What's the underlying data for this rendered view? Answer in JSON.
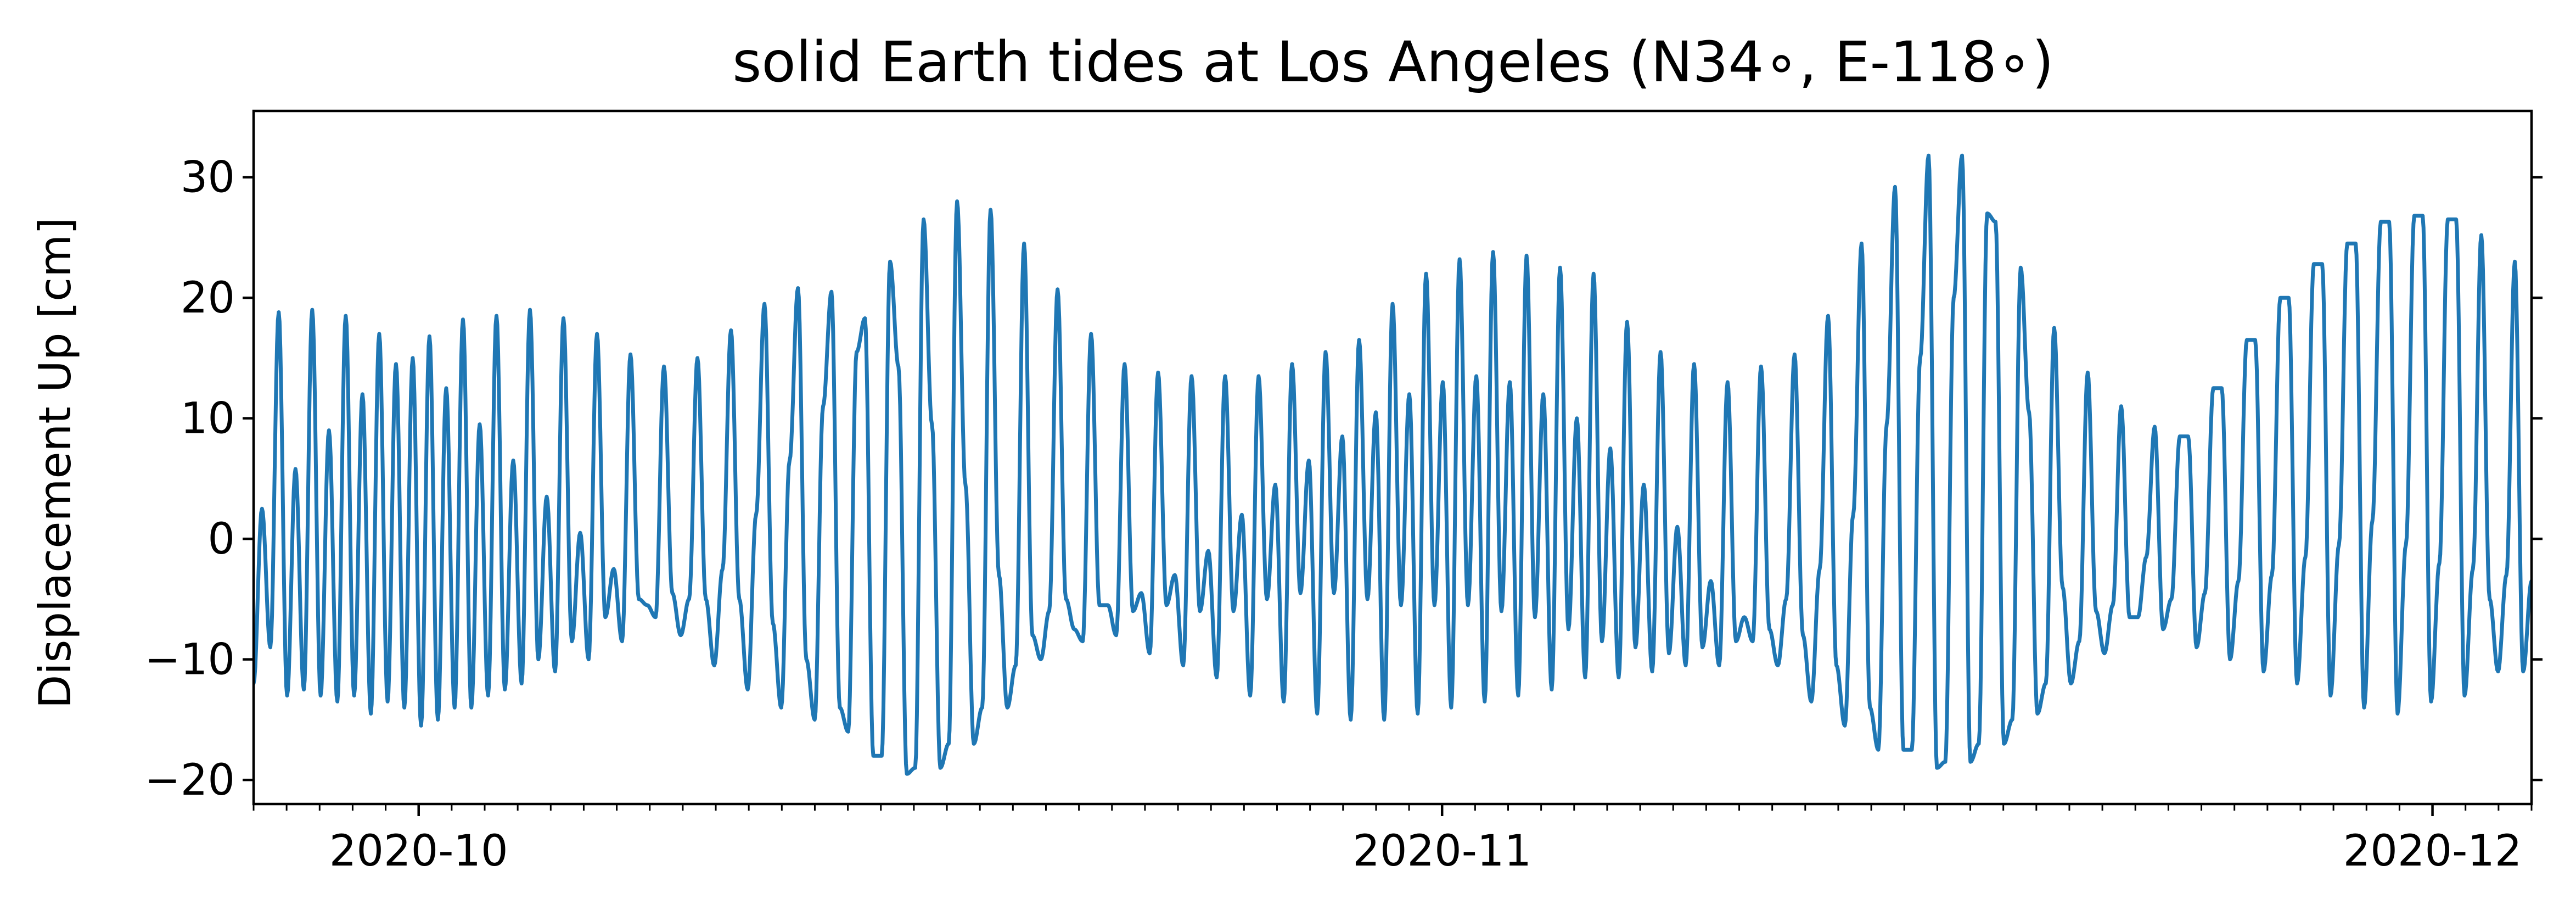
{
  "chart_data": {
    "type": "line",
    "title": "solid Earth tides at Los Angeles (N34$^\\circ$, E-118$^\\circ$)",
    "title_display": "solid Earth tides at Los Angeles (N34∘, E-118∘)",
    "xlabel": "",
    "ylabel": "Displacement Up [cm]",
    "x_axis": {
      "type": "date",
      "start": "2020-09-26",
      "end": "2020-12-04",
      "major_ticks": [
        {
          "date": "2020-10-01",
          "label": "2020-10"
        },
        {
          "date": "2020-11-01",
          "label": "2020-11"
        },
        {
          "date": "2020-12-01",
          "label": "2020-12"
        }
      ],
      "minor_ticks": "daily"
    },
    "ylim": [
      -22,
      35.5
    ],
    "y_ticks": [
      {
        "value": 30,
        "label": "30"
      },
      {
        "value": 20,
        "label": "20"
      },
      {
        "value": 10,
        "label": "10"
      },
      {
        "value": 0,
        "label": "0"
      },
      {
        "value": -10,
        "label": "−10"
      },
      {
        "value": -20,
        "label": "−20"
      }
    ],
    "grid": false,
    "legend": "none",
    "series": [
      {
        "color": "#1f77b4",
        "sampling": "6-hour",
        "x_start": "2020-09-26T00:00",
        "x_end": "2020-12-04T00:00",
        "values": [
          -12.0,
          2.5,
          -9.0,
          18.8,
          -13.0,
          5.8,
          -12.5,
          19.0,
          -13.0,
          9.0,
          -13.5,
          18.5,
          -13.0,
          12.0,
          -14.5,
          17.0,
          -13.5,
          14.5,
          -14.0,
          15.0,
          -15.5,
          16.8,
          -15.0,
          12.5,
          -14.0,
          18.2,
          -14.0,
          9.5,
          -13.0,
          18.5,
          -12.5,
          6.5,
          -12.0,
          19.0,
          -10.0,
          3.5,
          -11.0,
          18.3,
          -8.5,
          0.5,
          -10.0,
          17.0,
          -6.5,
          -2.5,
          -8.5,
          15.3,
          -5.0,
          -5.5,
          -6.5,
          14.3,
          -4.5,
          -8.0,
          -5.0,
          15.0,
          -5.0,
          -10.5,
          -2.5,
          17.3,
          -5.0,
          -12.5,
          2.0,
          19.5,
          -7.0,
          -14.0,
          6.5,
          20.8,
          -10.0,
          -15.0,
          11.0,
          20.5,
          -14.0,
          -16.0,
          15.5,
          18.3,
          -18.0,
          -18.0,
          23.0,
          14.3,
          -19.5,
          -19.0,
          26.5,
          9.5,
          -19.0,
          -17.0,
          28.0,
          4.5,
          -17.0,
          -14.0,
          27.3,
          -3.0,
          -14.0,
          -10.5,
          24.5,
          -8.0,
          -10.0,
          -6.0,
          20.7,
          -5.0,
          -7.5,
          -8.5,
          17.0,
          -5.5,
          -5.5,
          -8.0,
          14.5,
          -6.0,
          -4.5,
          -9.5,
          13.8,
          -5.5,
          -3.0,
          -10.5,
          13.5,
          -6.0,
          -1.0,
          -11.5,
          13.5,
          -6.0,
          2.0,
          -13.0,
          13.5,
          -5.0,
          4.5,
          -13.5,
          14.5,
          -4.5,
          6.5,
          -14.5,
          15.5,
          -4.5,
          8.5,
          -15.0,
          16.5,
          -5.0,
          10.5,
          -15.0,
          19.5,
          -5.5,
          12.0,
          -14.5,
          22.0,
          -5.5,
          13.0,
          -14.0,
          23.2,
          -5.5,
          13.5,
          -13.5,
          23.8,
          -6.0,
          13.0,
          -13.0,
          23.5,
          -6.5,
          12.0,
          -12.5,
          22.5,
          -7.5,
          10.0,
          -11.5,
          22.0,
          -8.5,
          7.5,
          -11.5,
          18.0,
          -9.0,
          4.5,
          -11.0,
          15.5,
          -9.5,
          1.0,
          -10.5,
          14.5,
          -9.0,
          -3.5,
          -10.5,
          13.0,
          -8.5,
          -6.5,
          -8.5,
          14.3,
          -7.5,
          -10.5,
          -5.0,
          15.3,
          -8.0,
          -13.5,
          -2.5,
          18.5,
          -10.5,
          -15.5,
          2.0,
          24.5,
          -14.0,
          -17.5,
          9.5,
          29.2,
          -17.5,
          -17.5,
          15.0,
          31.8,
          -19.0,
          -18.5,
          20.0,
          31.8,
          -18.5,
          -17.0,
          27.0,
          26.3,
          -17.0,
          -15.0,
          22.5,
          10.5,
          -14.5,
          -12.0,
          17.5,
          -4.0,
          -12.0,
          -8.5,
          13.8,
          -6.0,
          -9.5,
          -5.5,
          11.0,
          -6.5,
          -6.5,
          -1.5,
          9.3,
          -7.5,
          -5.0,
          8.5,
          8.5,
          -9.0,
          -4.5,
          12.5,
          12.5,
          -10.0,
          -3.5,
          16.5,
          16.5,
          -11.0,
          -3.0,
          20.0,
          20.0,
          -12.0,
          -1.5,
          22.8,
          22.8,
          -13.0,
          -0.5,
          24.5,
          24.5,
          -14.0,
          1.5,
          26.3,
          26.3,
          -14.5,
          -0.5,
          26.8,
          26.8,
          -13.5,
          -2.0,
          26.5,
          26.5,
          -13.0,
          -2.5,
          25.2,
          -5.0,
          -11.0,
          -3.0,
          23.0,
          -11.0,
          -3.5
        ]
      }
    ]
  }
}
